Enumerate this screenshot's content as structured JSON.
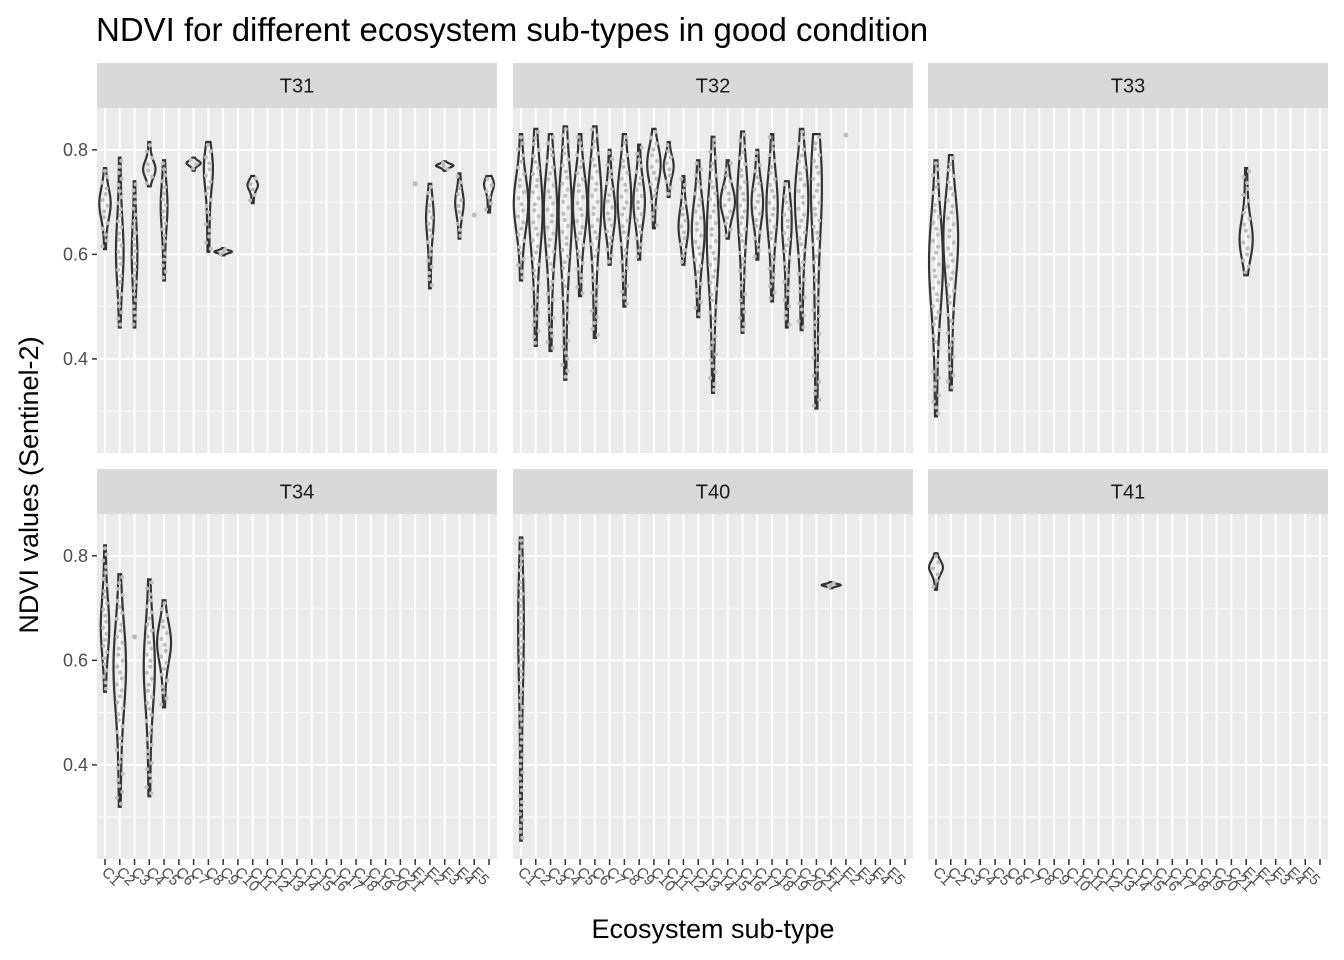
{
  "chart_data": {
    "type": "violin",
    "title": "NDVI for different ecosystem sub-types in good condition",
    "xlabel": "Ecosystem sub-type",
    "ylabel": "NDVI values (Sentinel-2)",
    "ylim": [
      0.22,
      0.88
    ],
    "yticks": [
      0.4,
      0.6,
      0.8
    ],
    "y_tick_labels": [
      "0.4",
      "0.6",
      "0.8"
    ],
    "grid": true,
    "facets": [
      "T31",
      "T32",
      "T33",
      "T34",
      "T40",
      "T41"
    ],
    "colors": {
      "panel_bg": "#ebebeb",
      "strip_bg": "#d9d9d9",
      "grid": "#ffffff",
      "violin": "#333333",
      "points": "#bdbdbd"
    },
    "x_categories": {
      "T31": [
        "C1",
        "C2",
        "C3",
        "C4",
        "C5",
        "C6",
        "C7",
        "C8",
        "C9",
        "C10",
        "C11",
        "C12",
        "C13",
        "C14",
        "C15",
        "C16",
        "C17",
        "C18",
        "C19",
        "C20",
        "C21",
        "E1",
        "E2",
        "E3",
        "E4",
        "E5"
      ],
      "T32": [
        "C1",
        "C2",
        "C3",
        "C4",
        "C5",
        "C6",
        "C7",
        "C8",
        "C9",
        "C10",
        "C11",
        "C12",
        "C13",
        "C14",
        "C15",
        "C16",
        "C17",
        "C18",
        "C19",
        "C20",
        "C21",
        "E1",
        "E2",
        "E3",
        "E4",
        "E5"
      ],
      "T33": [
        "C1",
        "C2",
        "C3",
        "C4",
        "C5",
        "C6",
        "C7",
        "C8",
        "C9",
        "C10",
        "C11",
        "C12",
        "C13",
        "C14",
        "C15",
        "C16",
        "C17",
        "C18",
        "C19",
        "C20",
        "C21",
        "E1",
        "E2",
        "E3",
        "E4",
        "E5"
      ],
      "T34": [
        "C1",
        "C2",
        "C3",
        "C4",
        "C5",
        "C6",
        "C7",
        "C8",
        "C9",
        "C10",
        "C11",
        "C12",
        "C13",
        "C14",
        "C15",
        "C16",
        "C17",
        "C18",
        "C19",
        "C20",
        "C21",
        "E1",
        "E2",
        "E3",
        "E4",
        "E5"
      ],
      "T40": [
        "C1",
        "C2",
        "C3",
        "C4",
        "C5",
        "C6",
        "C7",
        "C8",
        "C9",
        "C10",
        "C11",
        "C12",
        "C13",
        "C14",
        "C15",
        "C16",
        "C17",
        "C18",
        "C19",
        "C20",
        "C21",
        "E1",
        "E2",
        "E3",
        "E4",
        "E5"
      ],
      "T41": [
        "C1",
        "C2",
        "C3",
        "C4",
        "C5",
        "C6",
        "C7",
        "C8",
        "C9",
        "C10",
        "C11",
        "C12",
        "C13",
        "C14",
        "C15",
        "C16",
        "C17",
        "C18",
        "C19",
        "C20",
        "C21",
        "E1",
        "E2",
        "E3",
        "E4",
        "E5"
      ]
    },
    "violins": {
      "T31": [
        {
          "x": 0,
          "min": 0.61,
          "max": 0.765,
          "median": 0.7,
          "width": 0.35
        },
        {
          "x": 1,
          "min": 0.46,
          "max": 0.785,
          "median": 0.6,
          "width": 0.22
        },
        {
          "x": 2,
          "min": 0.46,
          "max": 0.74,
          "median": 0.6,
          "width": 0.15
        },
        {
          "x": 3,
          "min": 0.73,
          "max": 0.815,
          "median": 0.76,
          "width": 0.4
        },
        {
          "x": 4,
          "min": 0.55,
          "max": 0.78,
          "median": 0.7,
          "width": 0.2
        },
        {
          "x": 6,
          "min": 0.76,
          "max": 0.785,
          "median": 0.775,
          "width": 0.45
        },
        {
          "x": 7,
          "min": 0.605,
          "max": 0.815,
          "median": 0.78,
          "width": 0.35
        },
        {
          "x": 8,
          "min": 0.598,
          "max": 0.612,
          "median": 0.605,
          "width": 0.55
        },
        {
          "x": 10,
          "min": 0.698,
          "max": 0.75,
          "median": 0.735,
          "width": 0.35
        },
        {
          "x": 22,
          "min": 0.535,
          "max": 0.735,
          "median": 0.68,
          "width": 0.25
        },
        {
          "x": 23,
          "min": 0.76,
          "max": 0.778,
          "median": 0.77,
          "width": 0.55
        },
        {
          "x": 24,
          "min": 0.63,
          "max": 0.755,
          "median": 0.7,
          "width": 0.25
        },
        {
          "x": 26,
          "min": 0.68,
          "max": 0.75,
          "median": 0.74,
          "width": 0.4
        }
      ],
      "T32": [
        {
          "x": 0,
          "min": 0.55,
          "max": 0.83,
          "median": 0.7,
          "width": 0.45
        },
        {
          "x": 1,
          "min": 0.425,
          "max": 0.84,
          "median": 0.7,
          "width": 0.45
        },
        {
          "x": 2,
          "min": 0.415,
          "max": 0.83,
          "median": 0.7,
          "width": 0.45
        },
        {
          "x": 3,
          "min": 0.36,
          "max": 0.845,
          "median": 0.7,
          "width": 0.45
        },
        {
          "x": 4,
          "min": 0.52,
          "max": 0.83,
          "median": 0.7,
          "width": 0.45
        },
        {
          "x": 5,
          "min": 0.44,
          "max": 0.845,
          "median": 0.72,
          "width": 0.45
        },
        {
          "x": 6,
          "min": 0.58,
          "max": 0.8,
          "median": 0.68,
          "width": 0.35
        },
        {
          "x": 7,
          "min": 0.5,
          "max": 0.83,
          "median": 0.72,
          "width": 0.45
        },
        {
          "x": 8,
          "min": 0.59,
          "max": 0.81,
          "median": 0.7,
          "width": 0.35
        },
        {
          "x": 9,
          "min": 0.65,
          "max": 0.84,
          "median": 0.78,
          "width": 0.45
        },
        {
          "x": 10,
          "min": 0.71,
          "max": 0.815,
          "median": 0.77,
          "width": 0.3
        },
        {
          "x": 11,
          "min": 0.58,
          "max": 0.75,
          "median": 0.65,
          "width": 0.3
        },
        {
          "x": 12,
          "min": 0.48,
          "max": 0.78,
          "median": 0.65,
          "width": 0.4
        },
        {
          "x": 13,
          "min": 0.335,
          "max": 0.825,
          "median": 0.65,
          "width": 0.4
        },
        {
          "x": 14,
          "min": 0.63,
          "max": 0.78,
          "median": 0.7,
          "width": 0.45
        },
        {
          "x": 15,
          "min": 0.45,
          "max": 0.835,
          "median": 0.72,
          "width": 0.35
        },
        {
          "x": 16,
          "min": 0.59,
          "max": 0.8,
          "median": 0.7,
          "width": 0.35
        },
        {
          "x": 17,
          "min": 0.51,
          "max": 0.83,
          "median": 0.7,
          "width": 0.35
        },
        {
          "x": 18,
          "min": 0.46,
          "max": 0.74,
          "median": 0.68,
          "width": 0.35
        },
        {
          "x": 19,
          "min": 0.455,
          "max": 0.84,
          "median": 0.72,
          "width": 0.45
        },
        {
          "x": 20,
          "min": 0.305,
          "max": 0.83,
          "median": 0.78,
          "width": 0.5
        }
      ],
      "T33": [
        {
          "x": 0,
          "min": 0.29,
          "max": 0.78,
          "median": 0.6,
          "width": 0.45
        },
        {
          "x": 1,
          "min": 0.34,
          "max": 0.79,
          "median": 0.65,
          "width": 0.5
        },
        {
          "x": 21,
          "min": 0.56,
          "max": 0.765,
          "median": 0.62,
          "width": 0.45
        }
      ],
      "T34": [
        {
          "x": 0,
          "min": 0.54,
          "max": 0.82,
          "median": 0.66,
          "width": 0.25
        },
        {
          "x": 1,
          "min": 0.32,
          "max": 0.765,
          "median": 0.6,
          "width": 0.4
        },
        {
          "x": 3,
          "min": 0.34,
          "max": 0.755,
          "median": 0.6,
          "width": 0.35
        },
        {
          "x": 4,
          "min": 0.51,
          "max": 0.715,
          "median": 0.64,
          "width": 0.45
        }
      ],
      "T40": [
        {
          "x": 0,
          "min": 0.255,
          "max": 0.835,
          "median": 0.7,
          "width": 0.18
        },
        {
          "x": 21,
          "min": 0.738,
          "max": 0.75,
          "median": 0.744,
          "width": 0.6
        }
      ],
      "T41": [
        {
          "x": 0,
          "min": 0.735,
          "max": 0.805,
          "median": 0.78,
          "width": 0.45
        }
      ]
    },
    "single_points": {
      "T31": [
        {
          "x": 21,
          "y": 0.735
        },
        {
          "x": 25,
          "y": 0.675
        }
      ],
      "T32": [
        {
          "x": 22,
          "y": 0.828
        }
      ],
      "T34": [
        {
          "x": 2,
          "y": 0.645
        }
      ]
    }
  }
}
